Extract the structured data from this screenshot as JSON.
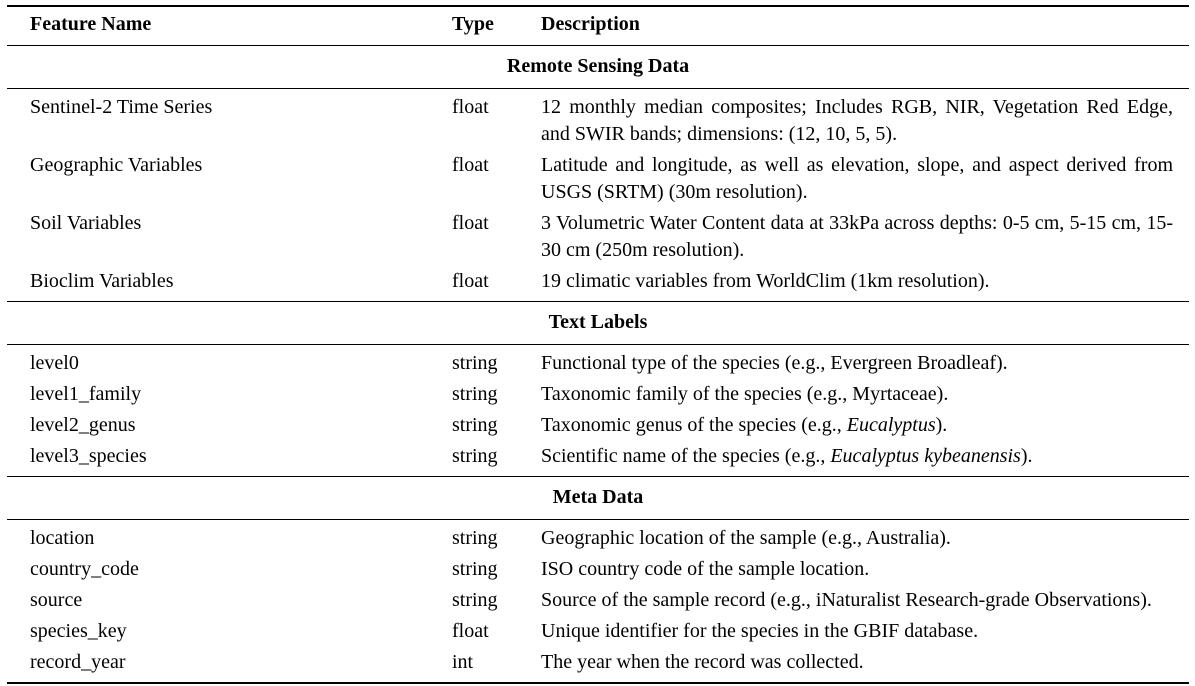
{
  "table": {
    "columns": [
      "Feature Name",
      "Type",
      "Description"
    ],
    "sections": [
      {
        "title": "Remote Sensing Data",
        "rows": [
          {
            "name": "Sentinel-2 Time Series",
            "type": "float",
            "desc": [
              {
                "text": "12 monthly median composites; Includes RGB, NIR, Vegetation Red Edge, and SWIR bands; dimensions: (12, 10, 5, 5)."
              }
            ]
          },
          {
            "name": "Geographic Variables",
            "type": "float",
            "desc": [
              {
                "text": "Latitude and longitude, as well as elevation, slope, and aspect derived from USGS (SRTM) (30m resolution)."
              }
            ]
          },
          {
            "name": "Soil Variables",
            "type": "float",
            "desc": [
              {
                "text": "3 Volumetric Water Content data at 33kPa across depths: 0-5 cm, 5-15 cm, 15-30 cm (250m resolution)."
              }
            ]
          },
          {
            "name": "Bioclim Variables",
            "type": "float",
            "desc": [
              {
                "text": "19 climatic variables from WorldClim (1km resolution)."
              }
            ]
          }
        ]
      },
      {
        "title": "Text Labels",
        "rows": [
          {
            "name": "level0",
            "type": "string",
            "desc": [
              {
                "text": "Functional type of the species (e.g., Evergreen Broadleaf)."
              }
            ]
          },
          {
            "name": "level1_family",
            "type": "string",
            "desc": [
              {
                "text": "Taxonomic family of the species (e.g., Myrtaceae)."
              }
            ]
          },
          {
            "name": "level2_genus",
            "type": "string",
            "desc": [
              {
                "text": "Taxonomic genus of the species (e.g., "
              },
              {
                "text": "Eucalyptus",
                "italic": true
              },
              {
                "text": ")."
              }
            ]
          },
          {
            "name": "level3_species",
            "type": "string",
            "desc": [
              {
                "text": "Scientific name of the species (e.g., "
              },
              {
                "text": "Eucalyptus kybeanensis",
                "italic": true
              },
              {
                "text": ")."
              }
            ]
          }
        ]
      },
      {
        "title": "Meta Data",
        "rows": [
          {
            "name": "location",
            "type": "string",
            "desc": [
              {
                "text": "Geographic location of the sample (e.g., Australia)."
              }
            ]
          },
          {
            "name": "country_code",
            "type": "string",
            "desc": [
              {
                "text": "ISO country code of the sample location."
              }
            ]
          },
          {
            "name": "source",
            "type": "string",
            "desc": [
              {
                "text": "Source of the sample record (e.g., iNaturalist Research-grade Observations)."
              }
            ]
          },
          {
            "name": "species_key",
            "type": "float",
            "desc": [
              {
                "text": "Unique identifier for the species in the GBIF database."
              }
            ]
          },
          {
            "name": "record_year",
            "type": "int",
            "desc": [
              {
                "text": "The year when the record was collected."
              }
            ]
          }
        ]
      }
    ]
  }
}
